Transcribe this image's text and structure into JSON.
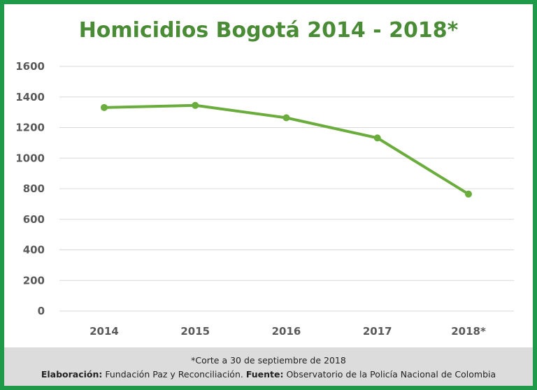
{
  "chart_data": {
    "type": "line",
    "title": "Homicidios Bogotá 2014 - 2018*",
    "categories": [
      "2014",
      "2015",
      "2016",
      "2017",
      "2018*"
    ],
    "series": [
      {
        "values": [
          1331,
          1345,
          1264,
          1132,
          765
        ]
      }
    ],
    "ylim": [
      0,
      1600
    ],
    "yticks": [
      0,
      200,
      400,
      600,
      800,
      1000,
      1200,
      1400,
      1600
    ],
    "grid": true,
    "xlabel": "",
    "ylabel": "",
    "colors": {
      "line": "#6aad3d",
      "title": "#4a8b35",
      "border": "#1e9a48"
    }
  },
  "footer": {
    "note": "*Corte a 30 de septiembre de 2018",
    "elaboracion_label": "Elaboración:",
    "elaboracion_value": " Fundación Paz y Reconciliación. ",
    "fuente_label": "Fuente:",
    "fuente_value": " Observatorio de la Policía Nacional de Colombia"
  }
}
